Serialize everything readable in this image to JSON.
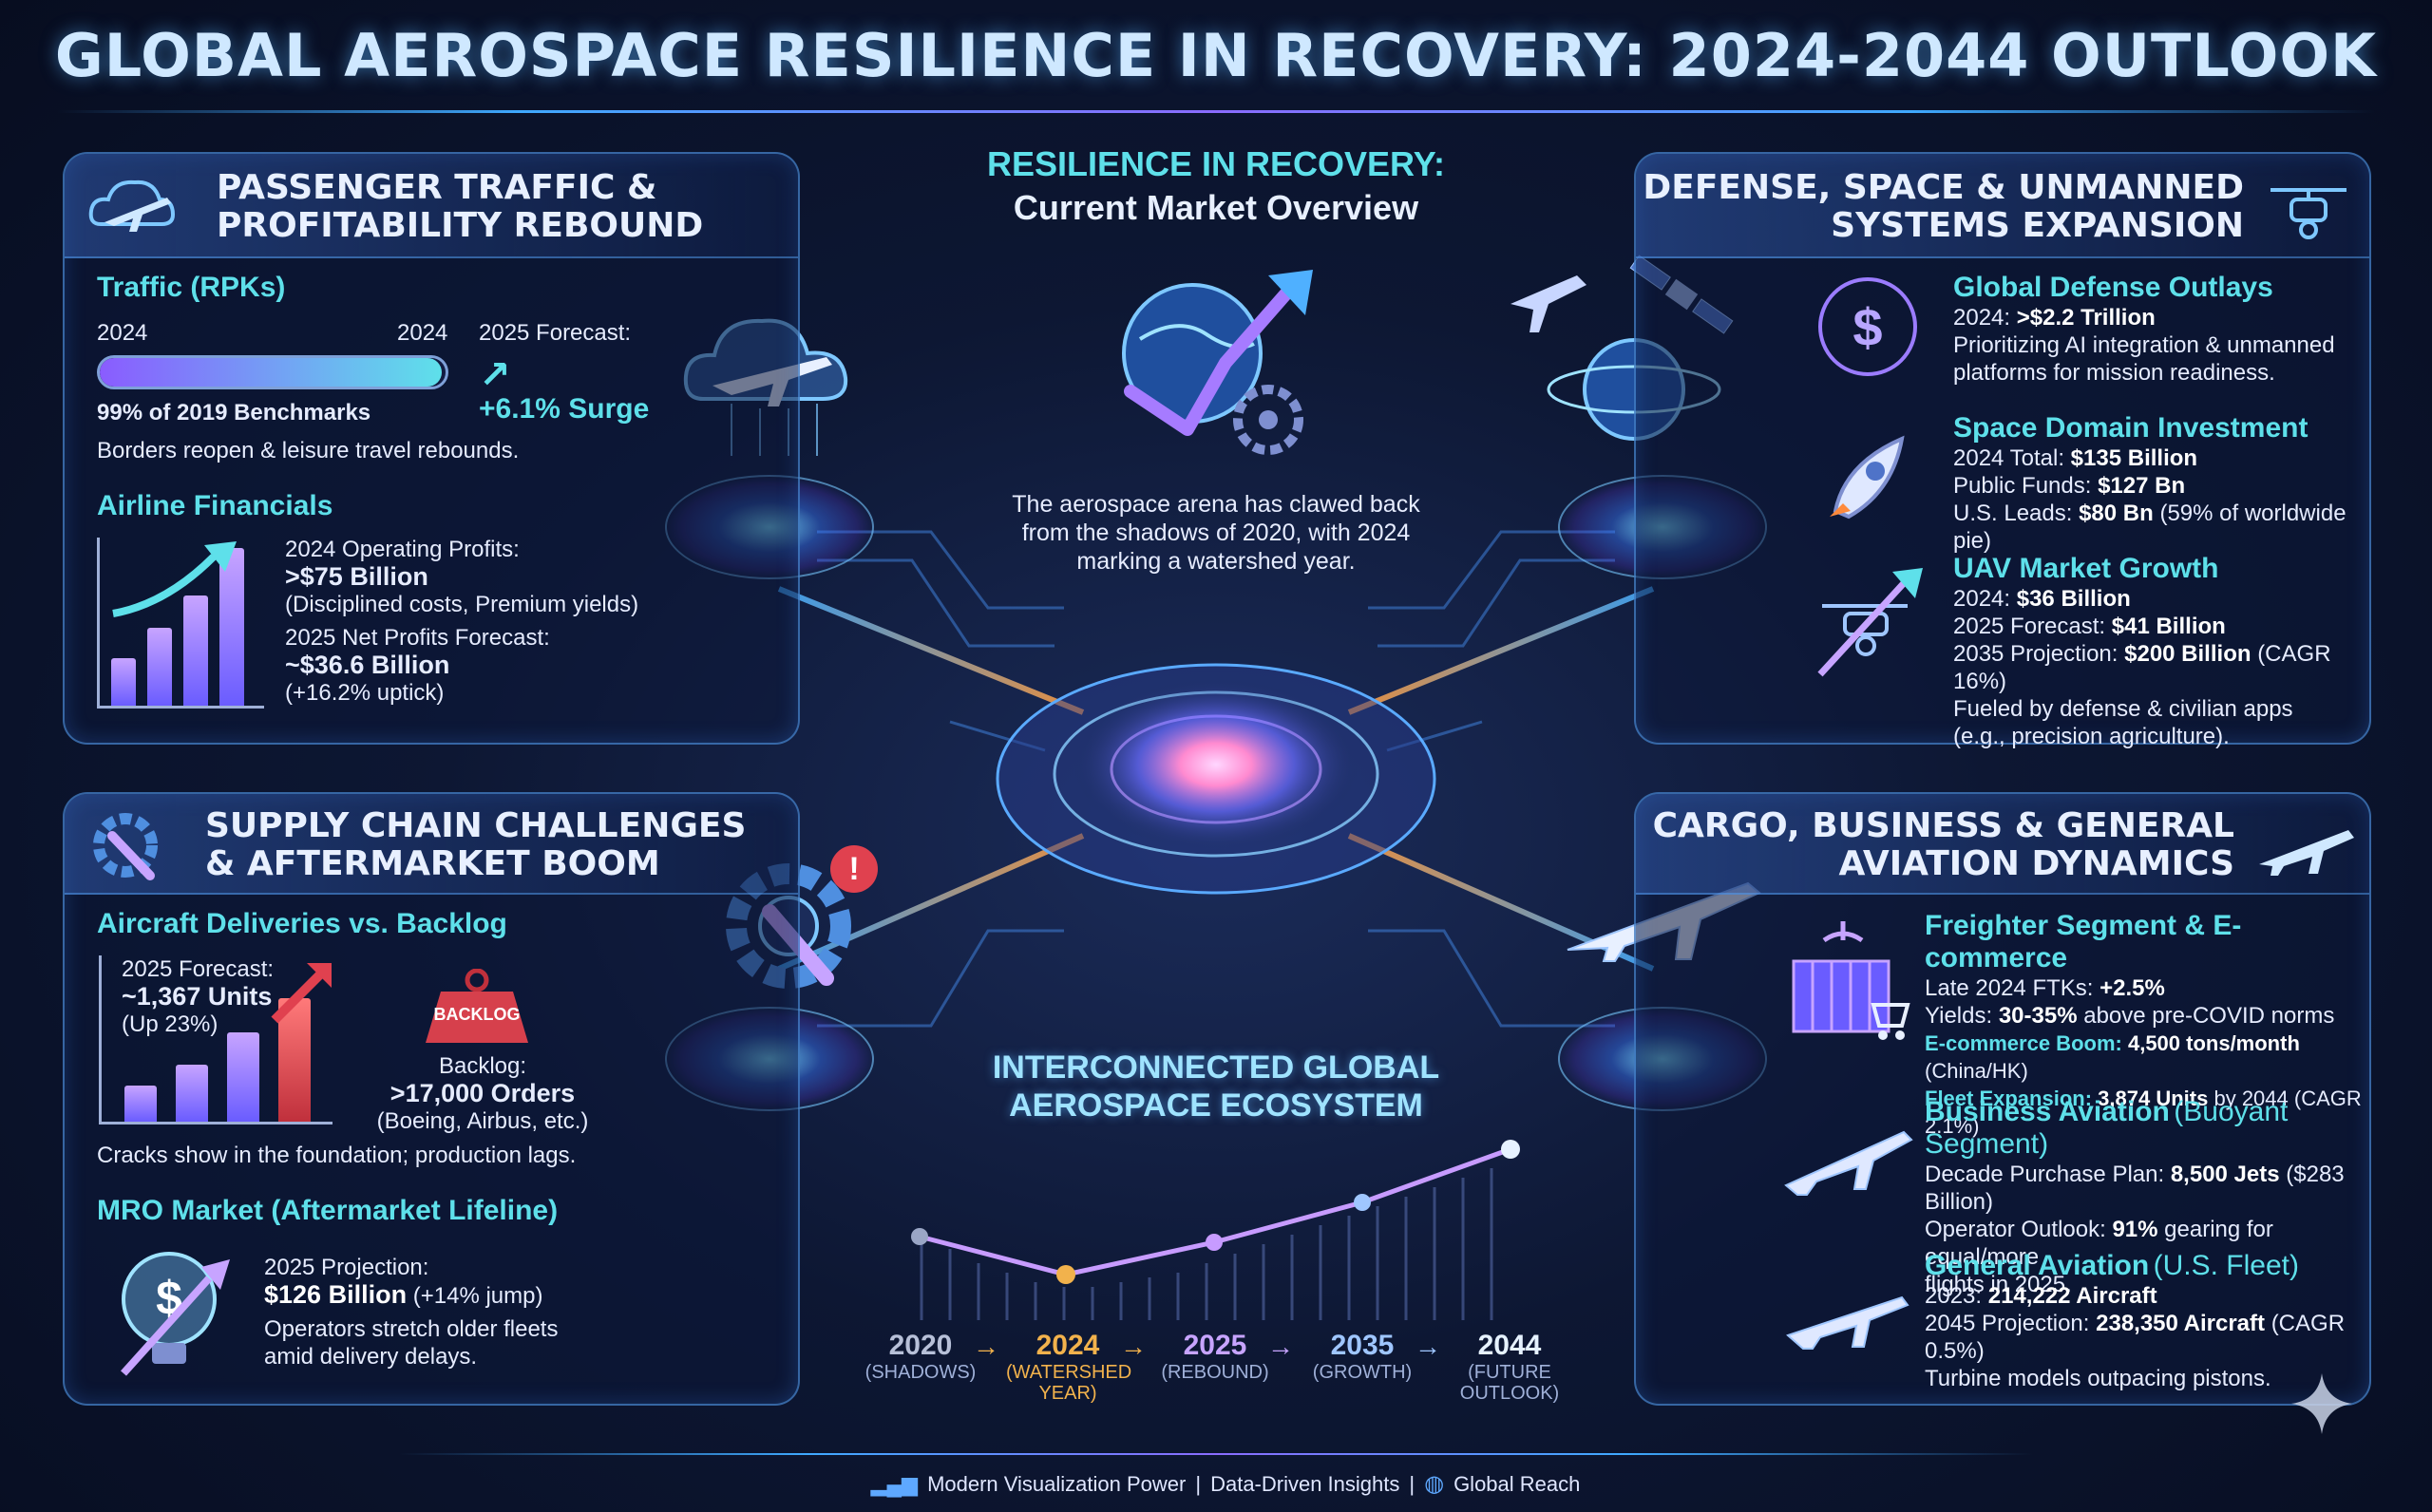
{
  "title": "GLOBAL AEROSPACE RESILIENCE IN RECOVERY: 2024-2044 OUTLOOK",
  "center": {
    "heading_line1": "RESILIENCE IN RECOVERY:",
    "heading_line2": "Current Market Overview",
    "description_line1": "The aerospace arena has clawed back",
    "description_line2": "from the shadows of 2020, with 2024",
    "description_line3": "marking a watershed year.",
    "ecosystem_line1": "INTERCONNECTED GLOBAL",
    "ecosystem_line2": "AEROSPACE ECOSYSTEM"
  },
  "timeline": [
    {
      "year": "2020",
      "sub1": "(SHADOWS)",
      "sub2": "",
      "color": "#b7c0d8"
    },
    {
      "year": "2024",
      "sub1": "(WATERSHED",
      "sub2": "YEAR)",
      "color": "#f2b24c"
    },
    {
      "year": "2025",
      "sub1": "(REBOUND)",
      "sub2": "",
      "color": "#c7a4ff"
    },
    {
      "year": "2035",
      "sub1": "(GROWTH)",
      "sub2": "",
      "color": "#9fc6ff"
    },
    {
      "year": "2044",
      "sub1": "(FUTURE",
      "sub2": "OUTLOOK)",
      "color": "#e6f2ff"
    }
  ],
  "timeline_arrow": "→",
  "passenger": {
    "head_line1": "PASSENGER TRAFFIC &",
    "head_line2": "PROFITABILITY REBOUND",
    "traffic_title": "Traffic (RPKs)",
    "bar_left": "2024",
    "bar_right": "2024",
    "bar_fill": 0.99,
    "benchmark": "99% of 2019 Benchmarks",
    "forecast_label": "2025 Forecast:",
    "forecast_value": "+6.1% Surge",
    "borders": "Borders reopen & leisure travel rebounds.",
    "financials_title": "Airline Financials",
    "op_label": "2024 Operating Profits:",
    "op_value": ">$75 Billion",
    "op_note": "(Disciplined costs, Premium yields)",
    "net_label": "2025 Net Profits Forecast:",
    "net_value": "~$36.6 Billion",
    "net_note": "(+16.2% uptick)"
  },
  "supply": {
    "head_line1": "SUPPLY CHAIN CHALLENGES",
    "head_line2": "& AFTERMARKET BOOM",
    "deliveries_title": "Aircraft Deliveries vs. Backlog",
    "forecast_label": "2025 Forecast:",
    "forecast_value": "~1,367 Units",
    "forecast_note": "(Up 23%)",
    "backlog_tag": "BACKLOG",
    "backlog_label": "Backlog:",
    "backlog_value": ">17,000 Orders",
    "backlog_note": "(Boeing, Airbus, etc.)",
    "cracks": "Cracks show in the foundation; production lags.",
    "mro_title": "MRO Market (Aftermarket Lifeline)",
    "mro_label": "2025 Projection:",
    "mro_value": "$126 Billion",
    "mro_note": "(+14% jump)",
    "mro_line1": "Operators stretch older fleets",
    "mro_line2": "amid delivery delays."
  },
  "defense": {
    "head_line1": "DEFENSE, SPACE & UNMANNED",
    "head_line2": "SYSTEMS EXPANSION",
    "outlays_title": "Global Defense Outlays",
    "outlays_year": "2024:",
    "outlays_value": ">$2.2 Trillion",
    "outlays_line1": "Prioritizing AI integration & unmanned",
    "outlays_line2": "platforms for mission readiness.",
    "space_title": "Space Domain Investment",
    "space_total_label": "2024 Total:",
    "space_total_value": "$135 Billion",
    "space_public_label": "Public Funds:",
    "space_public_value": "$127 Bn",
    "space_us_label": "U.S. Leads:",
    "space_us_value": "$80 Bn",
    "space_us_note": "(59% of worldwide pie)",
    "uav_title": "UAV Market Growth",
    "uav_2024_label": "2024:",
    "uav_2024_value": "$36 Billion",
    "uav_2025_label": "2025 Forecast:",
    "uav_2025_value": "$41 Billion",
    "uav_2035_label": "2035 Projection:",
    "uav_2035_value": "$200 Billion",
    "uav_2035_note": "(CAGR 16%)",
    "uav_line1": "Fueled by defense & civilian apps",
    "uav_line2": "(e.g., precision agriculture)."
  },
  "cargo": {
    "head_line1": "CARGO, BUSINESS & GENERAL",
    "head_line2": "AVIATION DYNAMICS",
    "freighter_title": "Freighter Segment & E-commerce",
    "ftk_label": "Late 2024 FTKs:",
    "ftk_value": "+2.5%",
    "yields_label": "Yields:",
    "yields_value": "30-35%",
    "yields_note": "above pre-COVID norms",
    "ecom_label": "E-commerce Boom:",
    "ecom_value": "4,500 tons/month",
    "ecom_note": "(China/HK)",
    "fleet_label": "Fleet Expansion:",
    "fleet_value": "3,874 Units",
    "fleet_note": "by 2044 (CAGR 2.1%)",
    "business_title": "Business Aviation",
    "business_note": "(Buoyant Segment)",
    "plan_label": "Decade Purchase Plan:",
    "plan_value": "8,500 Jets",
    "plan_note": "($283 Billion)",
    "operator_label": "Operator Outlook:",
    "operator_value": "91%",
    "operator_note": "gearing for equal/more",
    "operator_line2": "flights in 2025.",
    "ga_title": "General Aviation",
    "ga_note": "(U.S. Fleet)",
    "ga_2023_label": "2023:",
    "ga_2023_value": "214,222 Aircraft",
    "ga_2045_label": "2045 Projection:",
    "ga_2045_value": "238,350 Aircraft",
    "ga_2045_note": "(CAGR 0.5%)",
    "ga_line": "Turbine models outpacing pistons."
  },
  "footer": {
    "item1": "Modern Visualization Power",
    "sep": "|",
    "item2": "Data-Driven Insights",
    "item3": "Global Reach"
  },
  "colors": {
    "accent_cyan": "#5ee0ea",
    "accent_violet": "#9b7cff",
    "panel_border": "#5aaaff",
    "alert_red": "#e0414f"
  },
  "icons": [
    "airplane-cloud-icon",
    "gear-wrench-icon",
    "drone-icon",
    "cargo-plane-icon",
    "dollar-icon",
    "rocket-icon",
    "satellite-icon",
    "globe-growth-icon",
    "alert-icon",
    "lightbulb-dollar-icon",
    "sparkle-icon"
  ]
}
